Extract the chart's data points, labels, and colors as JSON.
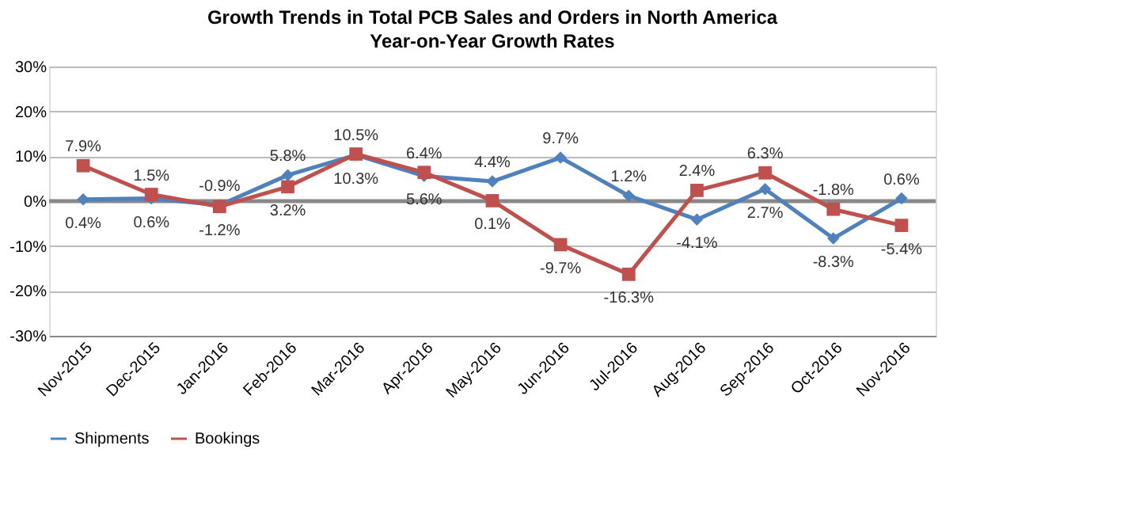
{
  "chart_data": {
    "type": "line",
    "title": "Growth Trends in Total PCB Sales and Orders in North America",
    "subtitle": "Year-on-Year Growth Rates",
    "categories": [
      "Nov-2015",
      "Dec-2015",
      "Jan-2016",
      "Feb-2016",
      "Mar-2016",
      "Apr-2016",
      "May-2016",
      "Jun-2016",
      "Jul-2016",
      "Aug-2016",
      "Sep-2016",
      "Oct-2016",
      "Nov-2016"
    ],
    "series": [
      {
        "name": "Shipments",
        "color": "#4f81bd",
        "marker": "diamond",
        "values": [
          0.4,
          0.6,
          -0.9,
          5.8,
          10.3,
          5.6,
          4.4,
          9.7,
          1.2,
          -4.1,
          2.7,
          -8.3,
          0.6
        ],
        "value_labels": [
          "0.4%",
          "0.6%",
          "-0.9%",
          "5.8%",
          "10.3%",
          "5.6%",
          "4.4%",
          "9.7%",
          "1.2%",
          "-4.1%",
          "2.7%",
          "-8.3%",
          "0.6%"
        ]
      },
      {
        "name": "Bookings",
        "color": "#c0504d",
        "marker": "square",
        "values": [
          7.9,
          1.5,
          -1.2,
          3.2,
          10.5,
          6.4,
          0.1,
          -9.7,
          -16.3,
          2.4,
          6.3,
          -1.8,
          -5.4
        ],
        "value_labels": [
          "7.9%",
          "1.5%",
          "-1.2%",
          "3.2%",
          "10.5%",
          "6.4%",
          "0.1%",
          "-9.7%",
          "-16.3%",
          "2.4%",
          "6.3%",
          "-1.8%",
          "-5.4%"
        ]
      }
    ],
    "ylim": [
      -30,
      30
    ],
    "yticks": [
      {
        "value": -30,
        "label": "-30%"
      },
      {
        "value": -20,
        "label": "-20%"
      },
      {
        "value": -10,
        "label": "-10%"
      },
      {
        "value": 0,
        "label": "0%"
      },
      {
        "value": 10,
        "label": "10%"
      },
      {
        "value": 20,
        "label": "20%"
      },
      {
        "value": 30,
        "label": "30%"
      }
    ],
    "ref_lines": [
      {
        "axis": "y",
        "value": 0,
        "color": "#888888"
      }
    ],
    "grid": "y",
    "legend": "bottom",
    "line_style": "solid"
  }
}
